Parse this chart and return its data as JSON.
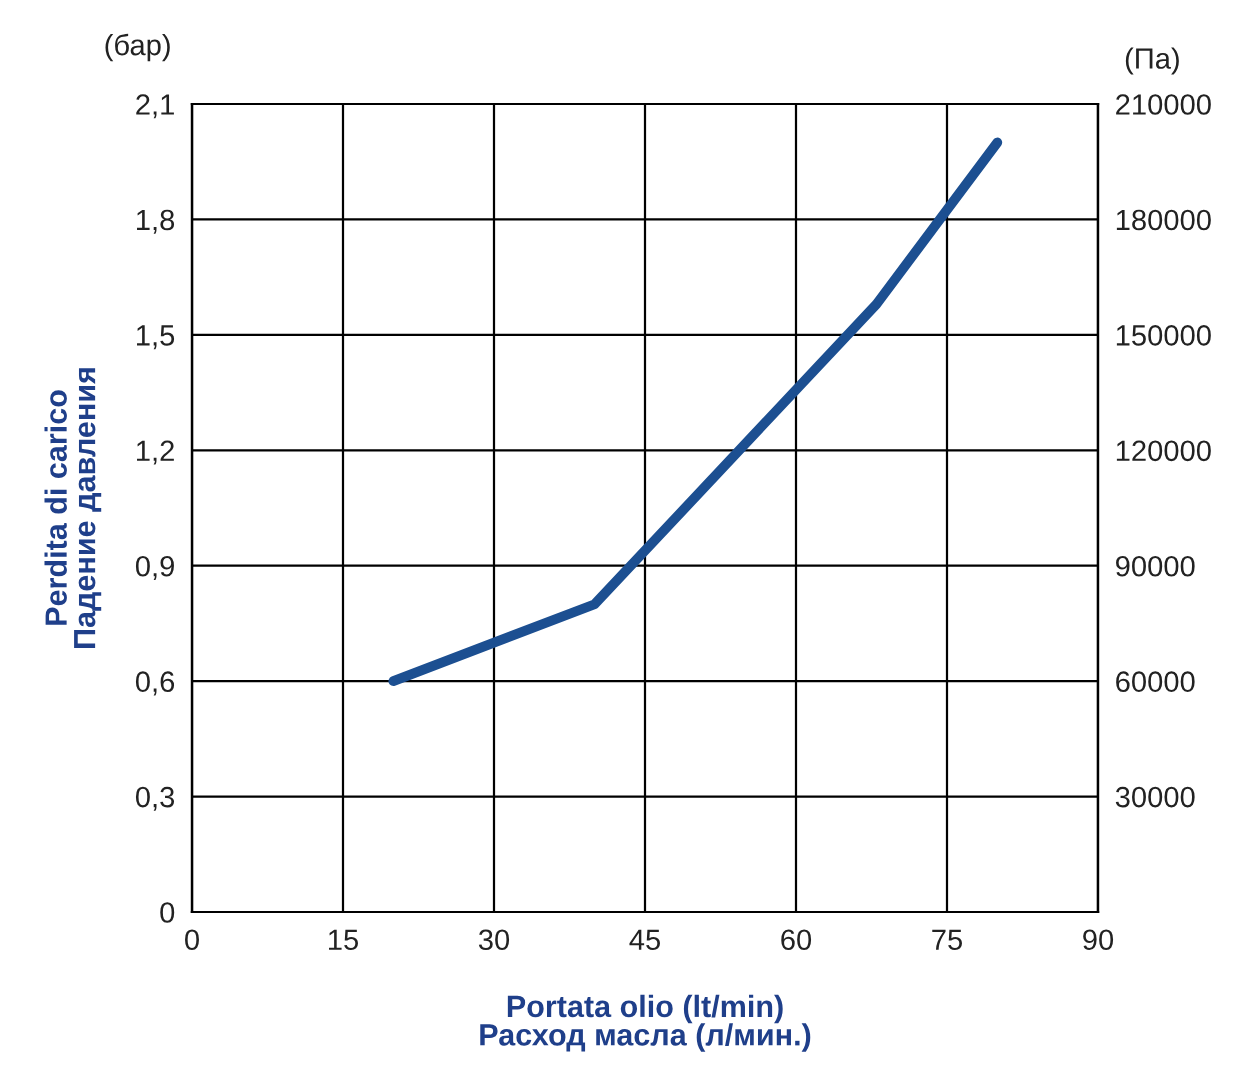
{
  "chart_data": {
    "type": "line",
    "xlabel": "Portata olio (lt/min)\nРасход масла (л/мин.)",
    "ylabel": "Perdita di carico\nПадение давления",
    "y2label": "(Па)",
    "annotations": [
      "(бар)"
    ],
    "series": [
      {
        "color": "#1c4f91",
        "x": [
          20,
          40,
          68,
          80
        ],
        "values": [
          0.6,
          0.8,
          1.58,
          2.0
        ]
      }
    ],
    "xlim": [
      0,
      90
    ],
    "xticks": [
      0,
      15,
      30,
      45,
      60,
      75,
      90
    ],
    "ylim": [
      0,
      2.1
    ],
    "yticks": [
      0,
      {
        "value": 0.3,
        "label": "0,3"
      },
      {
        "value": 0.6,
        "label": "0,6"
      },
      {
        "value": 0.9,
        "label": "0,9"
      },
      {
        "value": 1.2,
        "label": "1,2"
      },
      {
        "value": 1.5,
        "label": "1,5"
      },
      {
        "value": 1.8,
        "label": "1,8"
      },
      {
        "value": 2.1,
        "label": "2,1"
      }
    ],
    "y2lim": [
      0,
      210000
    ],
    "y2ticks": [
      30000,
      60000,
      90000,
      120000,
      150000,
      180000,
      210000
    ],
    "grid": true,
    "line_style": "solid",
    "marker": "none"
  }
}
